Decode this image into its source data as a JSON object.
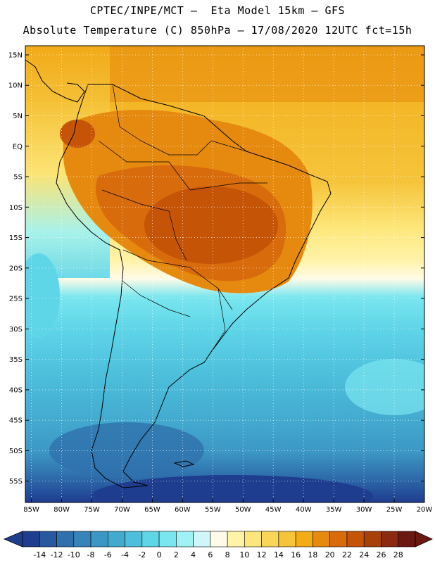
{
  "header": {
    "line1": "CPTEC/INPE/MCT –  Eta Model 15km – GFS",
    "line2": "Absolute Temperature (C) 850hPa – 17/08/2020 12UTC fct=15h"
  },
  "map": {
    "region": "South America",
    "lat_labels": [
      "15N",
      "10N",
      "5N",
      "EQ",
      "5S",
      "10S",
      "15S",
      "20S",
      "25S",
      "30S",
      "35S",
      "40S",
      "45S",
      "50S",
      "55S"
    ],
    "lon_labels": [
      "85W",
      "80W",
      "75W",
      "70W",
      "65W",
      "60W",
      "55W",
      "50W",
      "45W",
      "40W",
      "35W",
      "30W",
      "25W",
      "20W"
    ],
    "lon_range": [
      -86,
      -20
    ],
    "lat_range": [
      16.5,
      -58.5
    ]
  },
  "colorbar": {
    "ticks": [
      "-14",
      "-12",
      "-10",
      "-8",
      "-6",
      "-4",
      "-2",
      "0",
      "2",
      "4",
      "6",
      "8",
      "10",
      "12",
      "14",
      "16",
      "18",
      "20",
      "22",
      "24",
      "26",
      "28"
    ],
    "colors": [
      "#1f3d8f",
      "#28589f",
      "#2f70ad",
      "#3684b9",
      "#3c97c4",
      "#43aacf",
      "#4dbfdc",
      "#5fd5e8",
      "#7ae6ef",
      "#9ff3f6",
      "#cff6fb",
      "#fffbe8",
      "#fff3a8",
      "#fde77b",
      "#f9d657",
      "#f5c43b",
      "#f2ac18",
      "#e68a0f",
      "#d86b0b",
      "#c55407",
      "#a8400a",
      "#8b2a10",
      "#6b1712"
    ]
  }
}
